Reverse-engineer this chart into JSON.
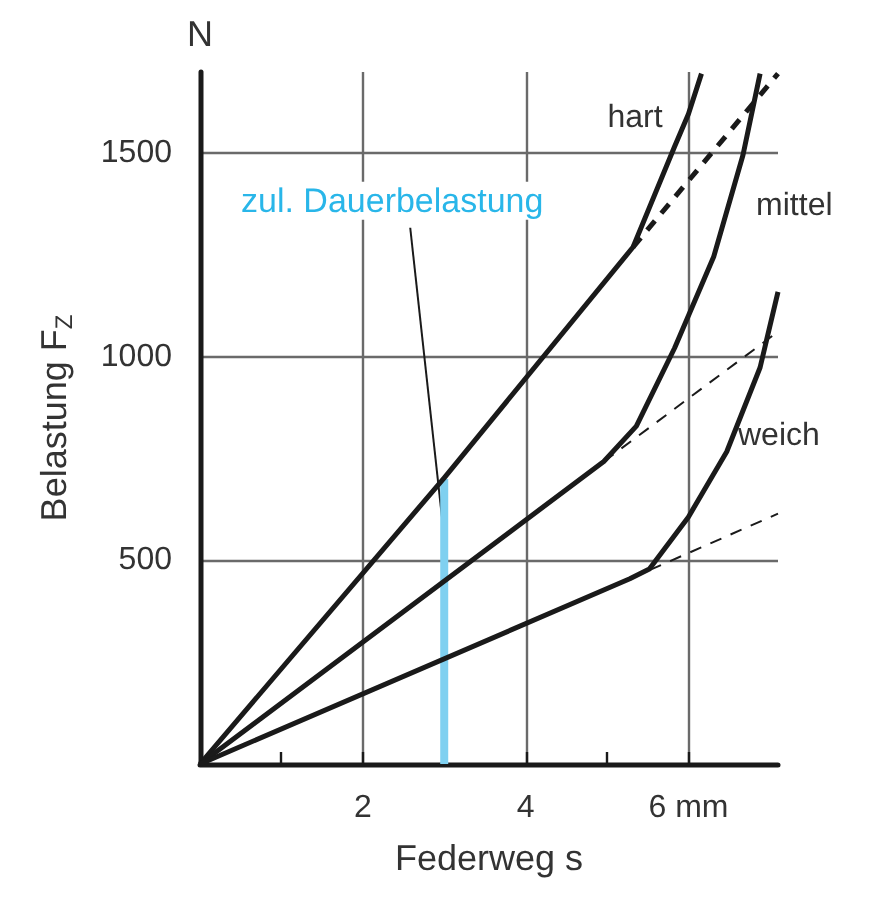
{
  "chart_data": {
    "type": "line",
    "xlabel": "Federweg s",
    "ylabel": "Belastung F$_{Z}$",
    "annotations": [
      "N",
      {
        "text": "zul. Dauerbelastung",
        "x": 3,
        "y": 600
      }
    ],
    "xlim": [
      0,
      7.1
    ],
    "ylim": [
      0,
      1700
    ],
    "xticks": [
      {
        "value": 1,
        "label": null
      },
      2,
      {
        "value": 3,
        "label": null
      },
      4,
      {
        "value": 5,
        "label": null
      },
      {
        "value": 6,
        "label": "6 mm"
      }
    ],
    "yticks": [
      500,
      1000,
      1500
    ],
    "grid": true,
    "legend": false,
    "marker": "none",
    "series": [
      {
        "name": "hart",
        "color": "#1a1a1a",
        "x": [
          0,
          3,
          5.32,
          5.83,
          6.0,
          6.16
        ],
        "values": [
          0,
          703,
          1270,
          1517,
          1597,
          1696
        ]
      },
      {
        "name": "mittel",
        "color": "#1a1a1a",
        "x": [
          0,
          4.96,
          5.36,
          5.83,
          6.31,
          6.67,
          6.88
        ],
        "values": [
          0,
          743,
          830,
          1022,
          1246,
          1496,
          1696
        ]
      },
      {
        "name": "weich",
        "color": "#1a1a1a",
        "x": [
          0,
          5.28,
          5.52,
          6.0,
          6.47,
          6.88,
          7.1
        ],
        "values": [
          0,
          455,
          479,
          607,
          767,
          974,
          1160
        ]
      },
      {
        "color": "#1a1a1a",
        "line_style": "dashed",
        "x": [
          5.32,
          7.1
        ],
        "values": [
          1270,
          1696
        ]
      },
      {
        "color": "#1a1a1a",
        "line_style": "dashed",
        "x": [
          4.96,
          7.1
        ],
        "values": [
          743,
          1062
        ]
      },
      {
        "color": "#1a1a1a",
        "line_style": "dashed",
        "x": [
          5.28,
          7.1
        ],
        "values": [
          455,
          615
        ]
      },
      {
        "color": "#7fd0f0",
        "x": [
          3,
          3
        ],
        "values": [
          0,
          700
        ]
      }
    ]
  }
}
